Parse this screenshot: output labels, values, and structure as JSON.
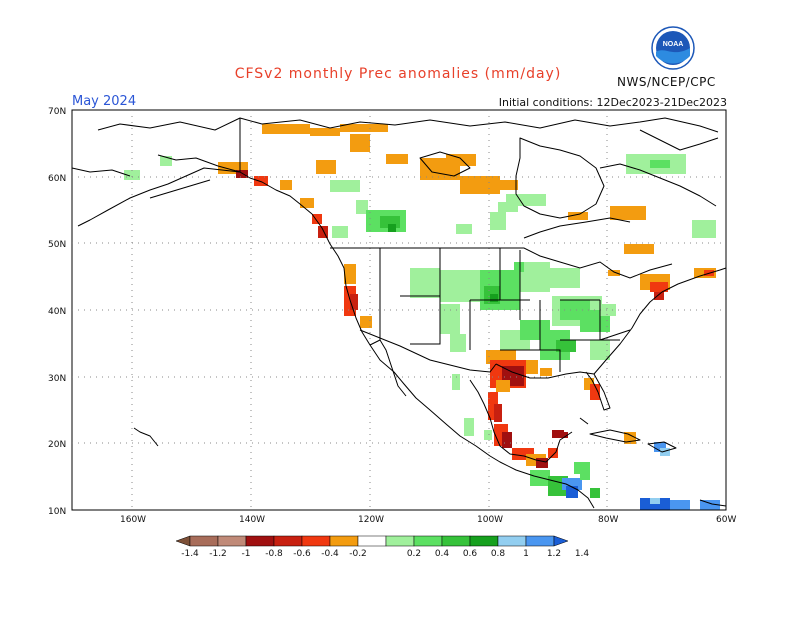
{
  "title": "CFSv2 monthly Prec anomalies (mm/day)",
  "month": "May 2024",
  "initial_conditions": "Initial conditions: 12Dec2023-21Dec2023",
  "agency": "NWS/NCEP/CPC",
  "logo": {
    "text": "NOAA",
    "icon": "noaa-logo"
  },
  "axes": {
    "lat_labels": [
      "70N",
      "60N",
      "50N",
      "40N",
      "30N",
      "20N",
      "10N"
    ],
    "lon_labels": [
      "160W",
      "140W",
      "120W",
      "100W",
      "80W",
      "60W"
    ]
  },
  "colorbar": {
    "labels": [
      "-1.4",
      "-1.2",
      "-1",
      "-0.8",
      "-0.6",
      "-0.4",
      "-0.2",
      "0.2",
      "0.4",
      "0.6",
      "0.8",
      "1",
      "1.2",
      "1.4"
    ],
    "colors": [
      "#7d5037",
      "#a86d5a",
      "#c08a78",
      "#a01010",
      "#c82010",
      "#f03810",
      "#f39c10",
      "#ffffff",
      "#a0f09c",
      "#5ce062",
      "#36c23a",
      "#16a01e",
      "#92cef0",
      "#4a96f0",
      "#1a5ed6"
    ]
  },
  "anomaly_regions": [
    {
      "region": "Gulf Coast Texas/Louisiana",
      "category": "-0.8",
      "color": "#a01010"
    },
    {
      "region": "Pacific Northwest coast",
      "category": "-0.6",
      "color": "#c82010"
    },
    {
      "region": "California coast",
      "category": "-0.6",
      "color": "#c82010"
    },
    {
      "region": "Eastern Mexico",
      "category": "-0.6",
      "color": "#c82010"
    },
    {
      "region": "Central Canada",
      "category": "-0.2",
      "color": "#f39c10"
    },
    {
      "region": "Northeast US coast",
      "category": "-0.4",
      "color": "#f03810"
    },
    {
      "region": "Florida",
      "category": "-0.4",
      "color": "#f03810"
    },
    {
      "region": "Central/Eastern US",
      "category": "0.4",
      "color": "#5ce062"
    },
    {
      "region": "Central America Pacific",
      "category": "1.2",
      "color": "#4a96f0"
    },
    {
      "region": "Caribbean / northern South America",
      "category": "1.4",
      "color": "#1a5ed6"
    }
  ]
}
